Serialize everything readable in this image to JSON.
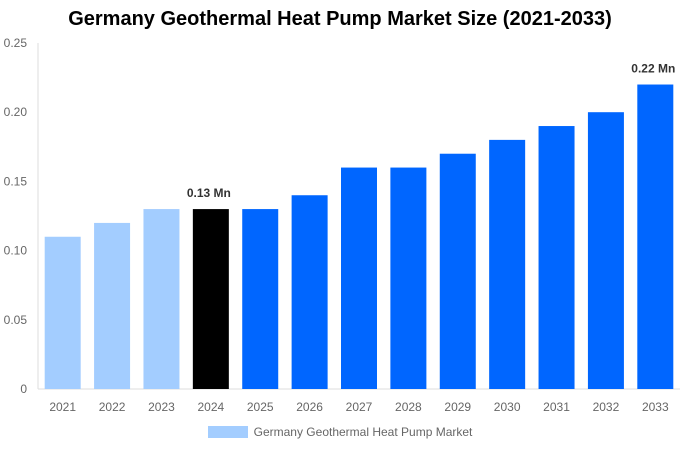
{
  "chart_data": {
    "type": "bar",
    "title": "Germany Geothermal Heat Pump Market Size (2021-2033)",
    "categories": [
      "2021",
      "2022",
      "2023",
      "2024",
      "2025",
      "2026",
      "2027",
      "2028",
      "2029",
      "2030",
      "2031",
      "2032",
      "2033"
    ],
    "series": [
      {
        "name": "Germany Geothermal Heat Pump Market",
        "values": [
          0.11,
          0.12,
          0.13,
          0.13,
          0.13,
          0.14,
          0.16,
          0.16,
          0.17,
          0.18,
          0.19,
          0.2,
          0.22
        ]
      }
    ],
    "bar_colors": [
      "#a3cdff",
      "#a3cdff",
      "#a3cdff",
      "#000000",
      "#0066ff",
      "#0066ff",
      "#0066ff",
      "#0066ff",
      "#0066ff",
      "#0066ff",
      "#0066ff",
      "#0066ff",
      "#0066ff"
    ],
    "legend_color": "#a3cdff",
    "data_labels": [
      {
        "category": "2024",
        "text": "0.13 Mn"
      },
      {
        "category": "2033",
        "text": "0.22 Mn"
      }
    ],
    "yticks": [
      "0",
      "0.05",
      "0.10",
      "0.15",
      "0.20",
      "0.25"
    ],
    "ytick_values": [
      0,
      0.05,
      0.1,
      0.15,
      0.2,
      0.25
    ],
    "ylim": [
      0,
      0.25
    ],
    "xlabel": "",
    "ylabel": "",
    "grid": false,
    "legend_position": "bottom"
  }
}
